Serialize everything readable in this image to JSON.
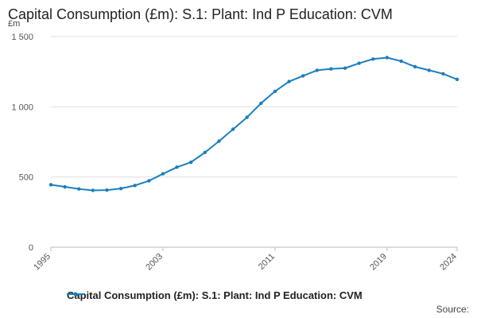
{
  "chart_data": {
    "type": "line",
    "title": "Capital Consumption (£m): S.1: Plant: Ind P Education: CVM",
    "unit_label": "£m",
    "ylim": [
      0,
      1500
    ],
    "yticks": [
      0,
      500,
      1000,
      1500
    ],
    "ytick_labels": [
      "0",
      "500",
      "1 000",
      "1 500"
    ],
    "xlim": [
      1995,
      2024
    ],
    "xticks": [
      1995,
      2003,
      2011,
      2019,
      2024
    ],
    "xtick_labels": [
      "1995",
      "2003",
      "2011",
      "2019",
      "2024"
    ],
    "grid": "horizontal",
    "legend_position": "bottom",
    "color": "#1a7fbf",
    "series": [
      {
        "name": "Capital Consumption (£m): S.1: Plant: Ind P Education: CVM",
        "x": [
          1995,
          1996,
          1997,
          1998,
          1999,
          2000,
          2001,
          2002,
          2003,
          2004,
          2005,
          2006,
          2007,
          2008,
          2009,
          2010,
          2011,
          2012,
          2013,
          2014,
          2015,
          2016,
          2017,
          2018,
          2019,
          2020,
          2021,
          2022,
          2023,
          2024
        ],
        "values": [
          445,
          430,
          415,
          405,
          407,
          418,
          440,
          473,
          523,
          570,
          605,
          675,
          755,
          840,
          925,
          1025,
          1110,
          1180,
          1220,
          1260,
          1270,
          1275,
          1310,
          1340,
          1350,
          1325,
          1285,
          1260,
          1235,
          1195
        ]
      }
    ]
  },
  "footer": {
    "source_label": "Source:"
  }
}
